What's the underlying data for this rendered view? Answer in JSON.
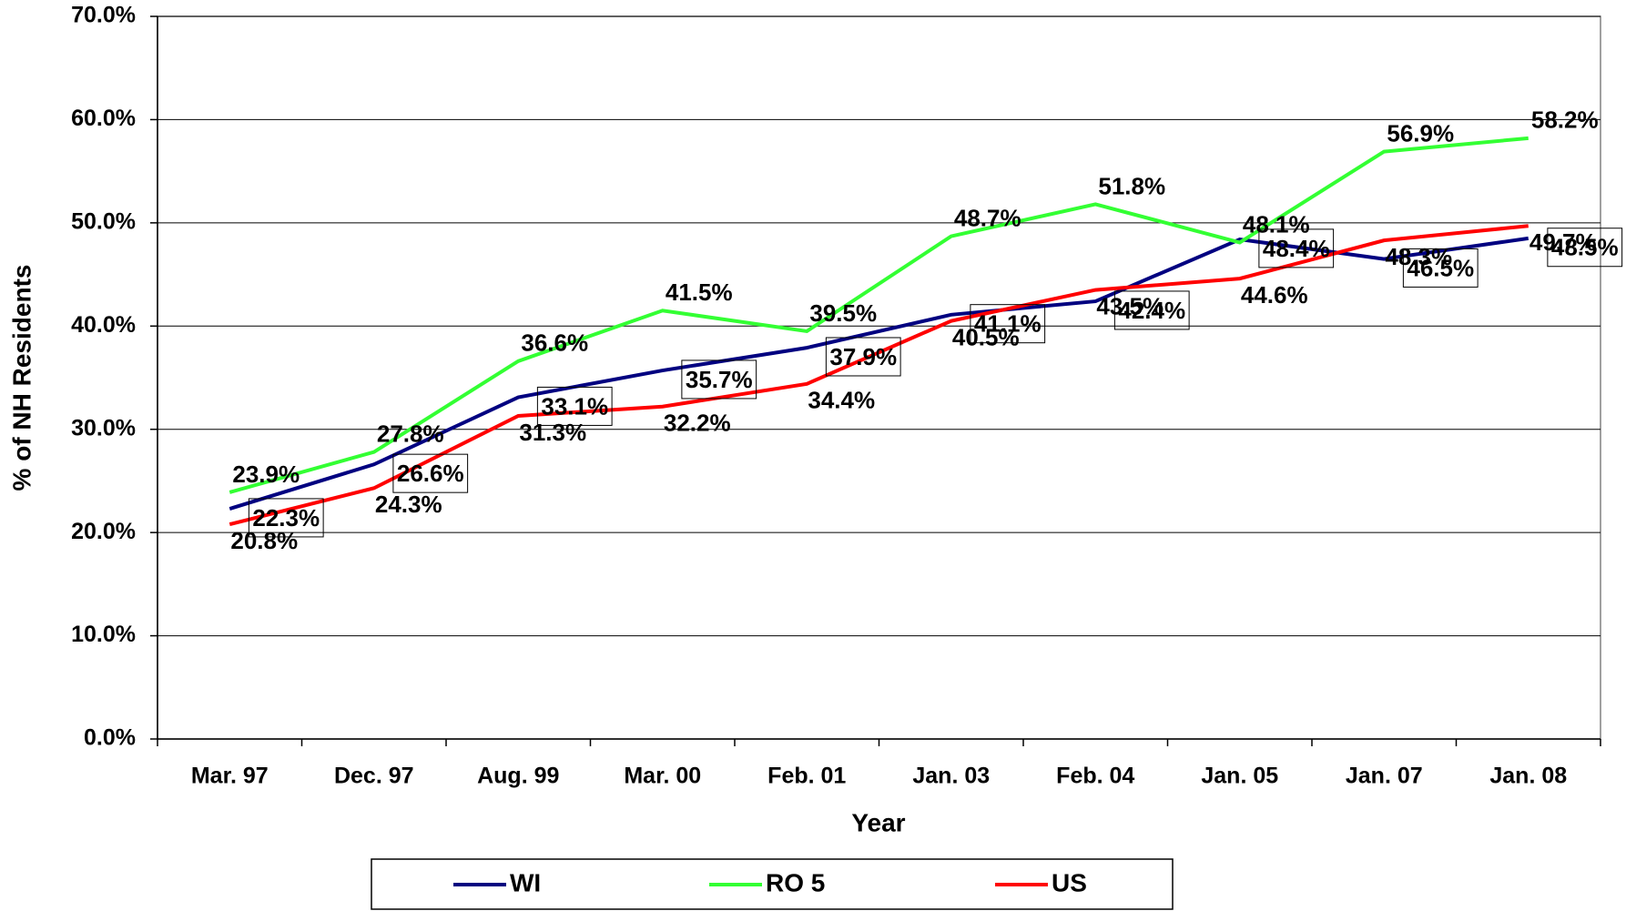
{
  "chart_data": {
    "type": "line",
    "x_label": "Year",
    "y_label": "% of NH Residents",
    "categories": [
      "Mar. 97",
      "Dec. 97",
      "Aug. 99",
      "Mar. 00",
      "Feb. 01",
      "Jan. 03",
      "Feb. 04",
      "Jan. 05",
      "Jan. 07",
      "Jan. 08"
    ],
    "series": [
      {
        "name": "WI",
        "color": "#000080",
        "boxed_labels": true,
        "values": [
          22.3,
          26.6,
          33.1,
          35.7,
          37.9,
          41.1,
          42.4,
          48.4,
          46.5,
          48.5
        ],
        "value_labels": [
          "22.3%",
          "26.6%",
          "33.1%",
          "35.7%",
          "37.9%",
          "41.1%",
          "42.4%",
          "48.4%",
          "46.5%",
          "48.5%"
        ]
      },
      {
        "name": "RO 5",
        "color": "#33ff33",
        "boxed_labels": false,
        "values": [
          23.9,
          27.8,
          36.6,
          41.5,
          39.5,
          48.7,
          51.8,
          48.1,
          56.9,
          58.2
        ],
        "value_labels": [
          "23.9%",
          "27.8%",
          "36.6%",
          "41.5%",
          "39.5%",
          "48.7%",
          "51.8%",
          "48.1%",
          "56.9%",
          "58.2%"
        ]
      },
      {
        "name": "US",
        "color": "#ff0000",
        "boxed_labels": false,
        "values": [
          20.8,
          24.3,
          31.3,
          32.2,
          34.4,
          40.5,
          43.5,
          44.6,
          48.3,
          49.7
        ],
        "value_labels": [
          "20.8%",
          "24.3%",
          "31.3%",
          "32.2%",
          "34.4%",
          "40.5%",
          "43.5%",
          "44.6%",
          "48.3%",
          "49.7%"
        ]
      }
    ],
    "ylim": [
      0,
      70
    ],
    "yticks": [
      {
        "value": 0,
        "label": "0.0%"
      },
      {
        "value": 10,
        "label": "10.0%"
      },
      {
        "value": 20,
        "label": "20.0%"
      },
      {
        "value": 30,
        "label": "30.0%"
      },
      {
        "value": 40,
        "label": "40.0%"
      },
      {
        "value": 50,
        "label": "50.0%"
      },
      {
        "value": 60,
        "label": "60.0%"
      },
      {
        "value": 70,
        "label": "70.0%"
      }
    ],
    "grid": true,
    "legend": "bottom"
  }
}
